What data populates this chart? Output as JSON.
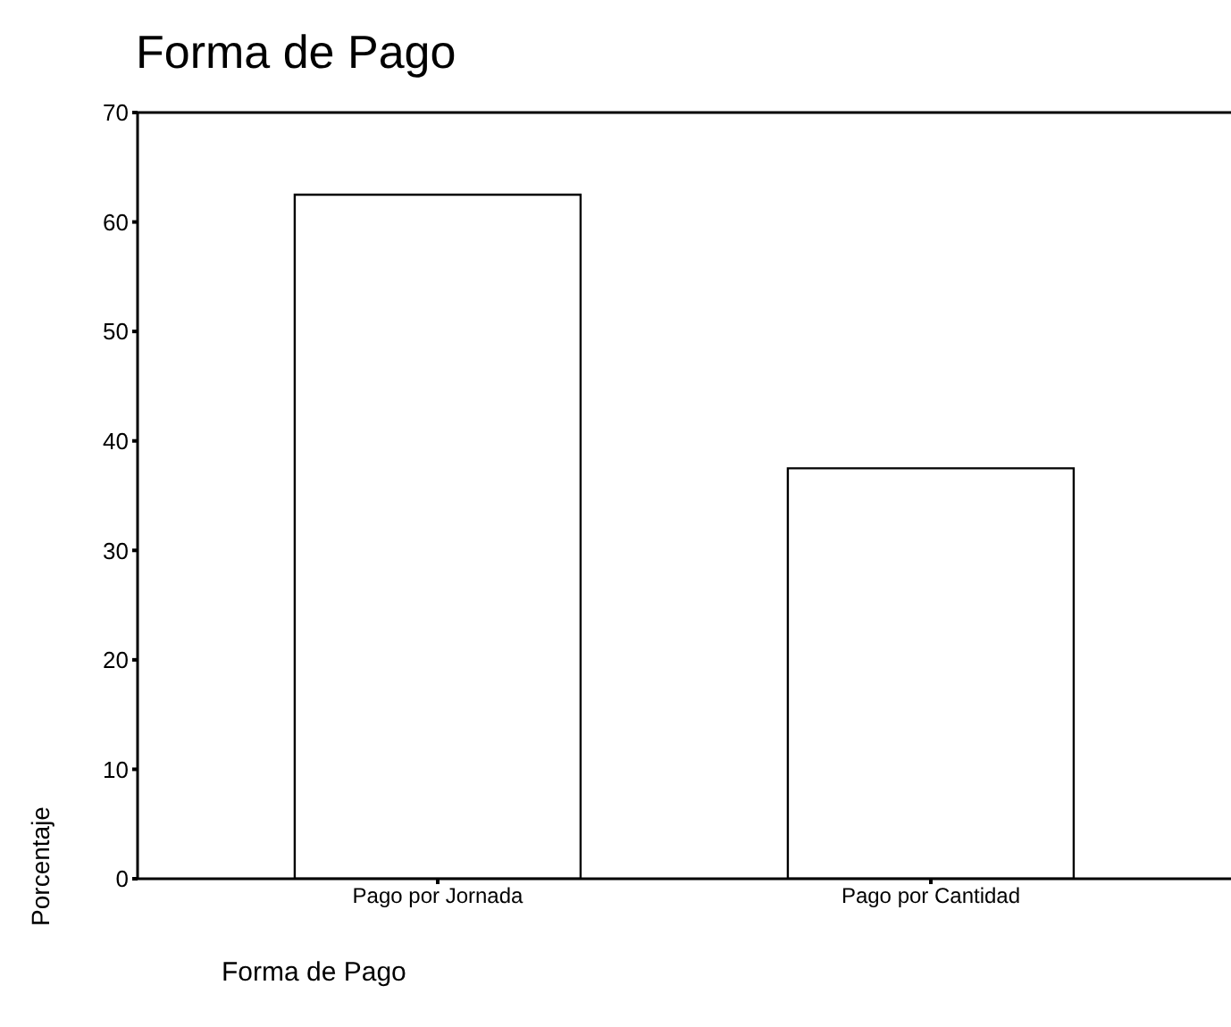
{
  "chart_data": {
    "type": "bar",
    "title": "Forma de Pago",
    "xlabel": "Forma de Pago",
    "ylabel": "Porcentaje",
    "categories": [
      "Pago por Jornada",
      "Pago por Cantidad"
    ],
    "values": [
      62.5,
      37.5
    ],
    "color": "#ffffff",
    "ylim": [
      0,
      70
    ],
    "yticks": [
      0,
      10,
      20,
      30,
      40,
      50,
      60,
      70
    ],
    "grid": false
  }
}
